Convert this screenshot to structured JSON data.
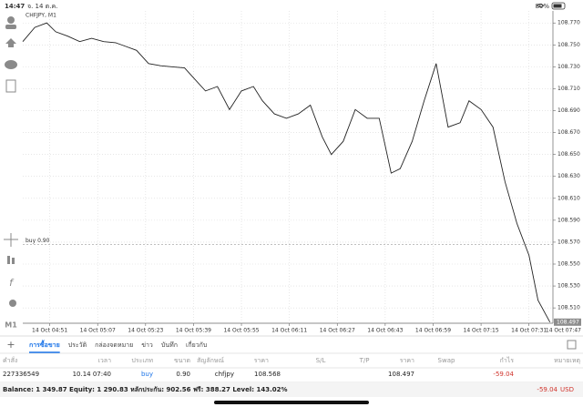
{
  "status_bar": {
    "time": "14:47",
    "date": "จ. 14 ต.ค.",
    "battery": "80%"
  },
  "chart_data": {
    "type": "line",
    "title": "CHFJPY, M1",
    "timeframe": "M1",
    "color": "#222222",
    "x": [
      0,
      4,
      8,
      11,
      15,
      19,
      23,
      27,
      31,
      34,
      38,
      42,
      46,
      50,
      54,
      57,
      61,
      65,
      69,
      73,
      77,
      80,
      84,
      88,
      92,
      96,
      100,
      103,
      107,
      111,
      115,
      119,
      123,
      126,
      130,
      134,
      138,
      142,
      146,
      149,
      153,
      157,
      161,
      165,
      169,
      172,
      176
    ],
    "values": [
      108.753,
      108.766,
      108.77,
      108.762,
      108.758,
      108.753,
      108.756,
      108.753,
      108.752,
      108.749,
      108.745,
      108.733,
      108.731,
      108.73,
      108.729,
      108.72,
      108.708,
      108.712,
      108.691,
      108.708,
      108.712,
      108.699,
      108.687,
      108.683,
      108.687,
      108.695,
      108.666,
      108.65,
      108.662,
      108.691,
      108.683,
      108.683,
      108.633,
      108.637,
      108.662,
      108.699,
      108.733,
      108.675,
      108.679,
      108.699,
      108.691,
      108.675,
      108.625,
      108.587,
      108.558,
      108.517,
      108.497
    ],
    "xlim": [
      0,
      177
    ],
    "ylim": [
      108.496,
      108.781
    ],
    "xticks": [
      {
        "value": 9,
        "label": "14 Oct 04:51"
      },
      {
        "value": 25,
        "label": "14 Oct 05:07"
      },
      {
        "value": 41,
        "label": "14 Oct 05:23"
      },
      {
        "value": 57,
        "label": "14 Oct 05:39"
      },
      {
        "value": 73,
        "label": "14 Oct 05:55"
      },
      {
        "value": 89,
        "label": "14 Oct 06:11"
      },
      {
        "value": 105,
        "label": "14 Oct 06:27"
      },
      {
        "value": 121,
        "label": "14 Oct 06:43"
      },
      {
        "value": 137,
        "label": "14 Oct 06:59"
      },
      {
        "value": 153,
        "label": "14 Oct 07:15"
      },
      {
        "value": 169,
        "label": "14 Oct 07:31"
      },
      {
        "value": 185,
        "label": "14 Oct 07:47"
      }
    ],
    "yticks": [
      {
        "value": 108.77,
        "label": "108.770"
      },
      {
        "value": 108.75,
        "label": "108.750"
      },
      {
        "value": 108.73,
        "label": "108.730"
      },
      {
        "value": 108.71,
        "label": "108.710"
      },
      {
        "value": 108.69,
        "label": "108.690"
      },
      {
        "value": 108.67,
        "label": "108.670"
      },
      {
        "value": 108.65,
        "label": "108.650"
      },
      {
        "value": 108.63,
        "label": "108.630"
      },
      {
        "value": 108.61,
        "label": "108.610"
      },
      {
        "value": 108.59,
        "label": "108.590"
      },
      {
        "value": 108.57,
        "label": "108.570"
      },
      {
        "value": 108.55,
        "label": "108.550"
      },
      {
        "value": 108.53,
        "label": "108.530"
      },
      {
        "value": 108.51,
        "label": "108.510"
      }
    ],
    "grid": true,
    "buy_line": {
      "label": "buy 0.90",
      "value": 108.568
    },
    "price_tag": {
      "value": 108.497,
      "label": "108.497"
    }
  },
  "tabs": [
    "การซื้อขาย",
    "ประวัติ",
    "กล่องจดหมาย",
    "ข่าว",
    "บันทึก",
    "เกี่ยวกับ"
  ],
  "table": {
    "headers": [
      "คำสั่ง",
      "เวลา",
      "ประเภท",
      "ขนาด",
      "สัญลักษณ์",
      "ราคา",
      "S/L",
      "T/P",
      "ราคา",
      "Swap",
      "กำไร",
      "หมายเหตุ"
    ],
    "row": {
      "order": "227336549",
      "time": "10.14 07:40",
      "type": "buy",
      "size": "0.90",
      "symbol": "chfjpy",
      "open_price": "108.568",
      "price": "108.497",
      "profit": "-59.04"
    }
  },
  "summary": {
    "text": "Balance: 1 349.87 Equity: 1 290.83 หลักประกัน: 902.56 ฟรี: 388.27 Level: 143.02%",
    "profit": "-59.04",
    "currency": "USD"
  }
}
